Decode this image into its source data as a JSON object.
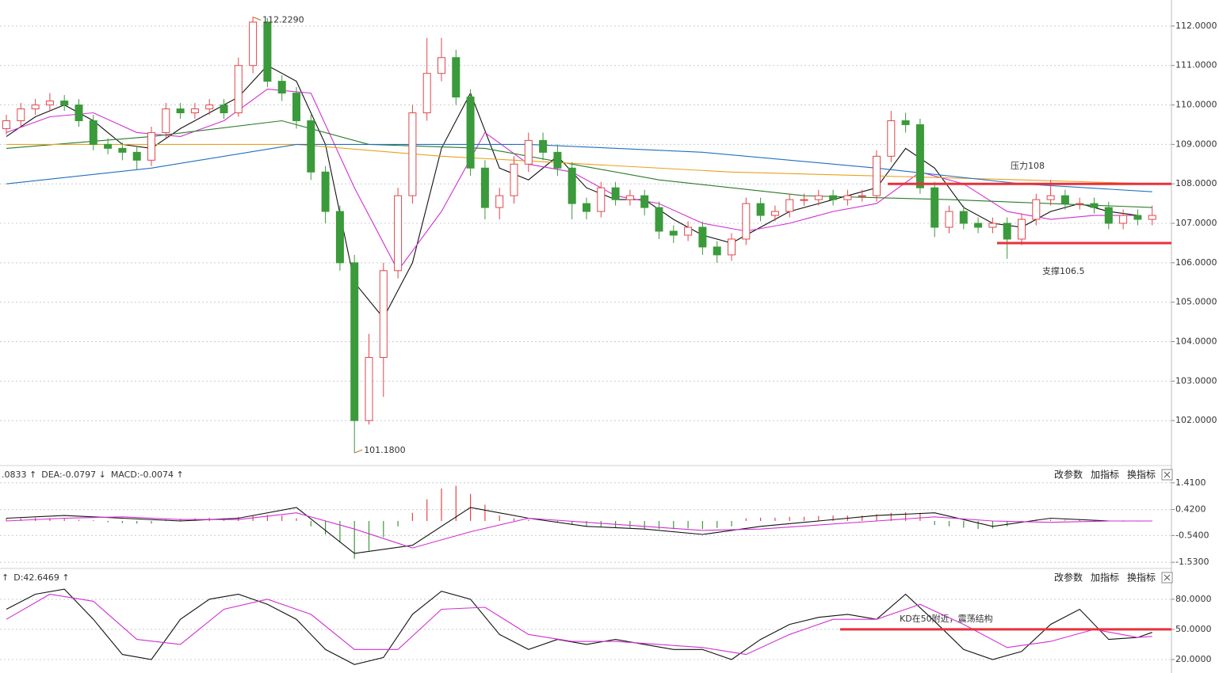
{
  "chart_data": [
    {
      "type": "candlestick",
      "open": [
        109.4,
        109.6,
        109.9,
        110.0,
        110.1,
        110.0,
        109.6,
        109.0,
        108.9,
        108.8,
        108.6,
        109.3,
        109.9,
        109.8,
        109.9,
        110.0,
        109.8,
        111.0,
        112.1,
        110.6,
        110.3,
        109.6,
        108.3,
        107.3,
        106.0,
        102.0,
        103.6,
        105.8,
        107.7,
        109.8,
        110.8,
        111.2,
        110.2,
        108.4,
        107.4,
        107.7,
        108.5,
        109.1,
        108.8,
        108.4,
        107.5,
        107.3,
        107.9,
        107.6,
        107.7,
        107.4,
        106.8,
        106.7,
        106.9,
        106.4,
        106.2,
        106.6,
        107.5,
        107.2,
        107.3,
        107.6,
        107.6,
        107.7,
        107.6,
        107.7,
        107.7,
        108.7,
        109.6,
        109.5,
        107.9,
        106.9,
        107.3,
        107.0,
        106.9,
        107.0,
        106.6,
        107.1,
        107.6,
        107.7,
        107.5,
        107.5,
        107.4,
        107.0,
        107.2,
        107.1
      ],
      "high": [
        109.75,
        110.05,
        110.15,
        110.3,
        110.25,
        110.15,
        109.75,
        109.15,
        109.05,
        108.95,
        109.45,
        110.05,
        110.05,
        110.05,
        110.15,
        110.15,
        111.2,
        112.229,
        112.2,
        110.75,
        110.45,
        109.75,
        108.45,
        107.45,
        106.2,
        104.2,
        106.0,
        107.9,
        110.0,
        111.7,
        111.7,
        111.4,
        110.4,
        108.6,
        107.9,
        108.7,
        109.3,
        109.3,
        109.0,
        108.55,
        107.65,
        108.05,
        108.05,
        107.85,
        107.85,
        107.55,
        106.95,
        107.05,
        107.05,
        106.55,
        106.75,
        107.65,
        107.65,
        107.45,
        107.75,
        107.75,
        107.85,
        107.85,
        107.85,
        107.85,
        108.85,
        109.85,
        109.8,
        109.65,
        108.05,
        107.45,
        107.45,
        107.15,
        107.15,
        107.15,
        107.25,
        107.75,
        108.1,
        107.85,
        107.65,
        107.65,
        107.55,
        107.35,
        107.35,
        107.45
      ],
      "low": [
        109.25,
        109.45,
        109.75,
        109.85,
        109.85,
        109.45,
        108.85,
        108.75,
        108.6,
        108.35,
        108.45,
        109.15,
        109.65,
        109.65,
        109.75,
        109.65,
        109.7,
        110.8,
        110.45,
        110.1,
        109.4,
        108.1,
        107.0,
        105.8,
        101.18,
        101.9,
        102.6,
        105.6,
        107.5,
        109.6,
        110.6,
        110.0,
        108.2,
        107.1,
        107.1,
        107.5,
        108.3,
        108.6,
        108.2,
        107.1,
        107.1,
        107.15,
        107.45,
        107.45,
        107.2,
        106.6,
        106.5,
        106.55,
        106.2,
        106.0,
        106.05,
        106.45,
        107.05,
        107.05,
        107.15,
        107.45,
        107.45,
        107.45,
        107.45,
        107.55,
        107.55,
        108.55,
        109.3,
        107.75,
        106.65,
        106.75,
        106.85,
        106.75,
        106.75,
        106.1,
        106.45,
        106.95,
        107.45,
        107.35,
        107.35,
        107.25,
        106.85,
        106.85,
        106.95,
        106.95
      ],
      "close": [
        109.6,
        109.9,
        110.0,
        110.1,
        110.0,
        109.6,
        109.0,
        108.9,
        108.8,
        108.6,
        109.3,
        109.9,
        109.8,
        109.9,
        110.0,
        109.8,
        111.0,
        112.1,
        110.6,
        110.3,
        109.6,
        108.3,
        107.3,
        106.0,
        102.0,
        103.6,
        105.8,
        107.7,
        109.8,
        110.8,
        111.2,
        110.2,
        108.4,
        107.4,
        107.7,
        108.5,
        109.1,
        108.8,
        108.4,
        107.5,
        107.3,
        107.9,
        107.6,
        107.7,
        107.4,
        106.8,
        106.7,
        106.9,
        106.4,
        106.2,
        106.6,
        107.5,
        107.2,
        107.3,
        107.6,
        107.6,
        107.7,
        107.6,
        107.7,
        107.7,
        108.7,
        109.6,
        109.5,
        107.9,
        106.9,
        107.3,
        107.0,
        106.9,
        107.0,
        106.6,
        107.1,
        107.6,
        107.7,
        107.5,
        107.5,
        107.4,
        107.0,
        107.2,
        107.1,
        107.2
      ],
      "up_color": "#e0474c",
      "down_color": "#3b9a3b",
      "ylim": [
        100.88,
        112.66
      ],
      "yticks": [
        {
          "value": 102,
          "label": "102.0000"
        },
        {
          "value": 103,
          "label": "103.0000"
        },
        {
          "value": 104,
          "label": "104.0000"
        },
        {
          "value": 105,
          "label": "105.0000"
        },
        {
          "value": 106,
          "label": "106.0000"
        },
        {
          "value": 107,
          "label": "107.0000"
        },
        {
          "value": 108,
          "label": "108.0000"
        },
        {
          "value": 109,
          "label": "109.0000"
        },
        {
          "value": 110,
          "label": "110.0000"
        },
        {
          "value": 111,
          "label": "111.0000"
        },
        {
          "value": 112,
          "label": "112.0000"
        }
      ],
      "grid": true,
      "lines": [
        {
          "color": "#111111",
          "x": [
            0,
            2,
            4,
            6,
            8,
            10,
            12,
            14,
            16,
            18,
            20,
            22,
            24,
            26,
            28,
            30,
            32,
            34,
            36,
            38,
            40,
            42,
            44,
            46,
            48,
            50,
            52,
            54,
            56,
            58,
            60,
            62,
            64,
            66,
            68,
            70,
            72,
            74,
            76,
            78
          ],
          "values": [
            109.2,
            109.7,
            110.0,
            109.6,
            109.0,
            108.9,
            109.4,
            109.8,
            110.2,
            111.0,
            110.6,
            109.0,
            105.5,
            104.6,
            106.0,
            108.9,
            110.3,
            108.4,
            108.1,
            108.7,
            107.9,
            107.6,
            107.6,
            107.1,
            106.7,
            106.5,
            106.9,
            107.3,
            107.5,
            107.7,
            107.9,
            108.9,
            108.4,
            107.4,
            107.0,
            106.9,
            107.3,
            107.5,
            107.3,
            107.2
          ]
        },
        {
          "color": "#d22fd2",
          "x": [
            0,
            3,
            6,
            9,
            12,
            15,
            18,
            21,
            24,
            27,
            30,
            33,
            36,
            39,
            42,
            45,
            48,
            51,
            54,
            57,
            60,
            63,
            66,
            69,
            72,
            75,
            78
          ],
          "values": [
            109.3,
            109.7,
            109.8,
            109.3,
            109.2,
            109.6,
            110.4,
            110.3,
            107.9,
            105.8,
            107.3,
            109.3,
            108.5,
            108.3,
            107.7,
            107.5,
            107.0,
            106.8,
            107.0,
            107.3,
            107.5,
            108.3,
            108.0,
            107.3,
            107.1,
            107.2,
            107.2
          ]
        },
        {
          "color": "#2a7a2a",
          "x": [
            0,
            10,
            19,
            25,
            33,
            45,
            55,
            65,
            79
          ],
          "values": [
            108.9,
            109.2,
            109.6,
            109.0,
            108.9,
            108.1,
            107.7,
            107.6,
            107.4
          ]
        },
        {
          "color": "#e8a020",
          "x": [
            0,
            10,
            20,
            30,
            40,
            50,
            60,
            70,
            79
          ],
          "values": [
            109.0,
            109.0,
            109.0,
            108.7,
            108.5,
            108.3,
            108.2,
            108.1,
            108.0
          ]
        },
        {
          "color": "#1f6fc0",
          "x": [
            0,
            10,
            20,
            28,
            36,
            48,
            60,
            70,
            79
          ],
          "values": [
            108.0,
            108.4,
            109.0,
            109.0,
            109.0,
            108.8,
            108.4,
            108.0,
            107.8
          ]
        }
      ],
      "extreme_labels": [
        {
          "index": 17,
          "value": 112.229,
          "label": "112.2290"
        },
        {
          "index": 24,
          "value": 101.18,
          "label": "101.1800"
        }
      ],
      "levels": [
        {
          "value": 108,
          "label": "压力108",
          "color": "#e8313a"
        },
        {
          "value": 106.5,
          "label": "支撑106.5",
          "color": "#e8313a"
        }
      ]
    },
    {
      "type": "macd",
      "header": [
        ".0833 ↑",
        "DEA:-0.0797 ↓",
        "MACD:-0.0074 ↑"
      ],
      "buttons": [
        "改参数",
        "加指标",
        "换指标"
      ],
      "histogram": [
        0.1,
        0.1,
        0.12,
        0.1,
        0.08,
        0.05,
        0.03,
        -0.05,
        -0.08,
        -0.1,
        -0.1,
        0.05,
        0.08,
        0.1,
        0.12,
        0.1,
        0.15,
        0.2,
        0.22,
        0.2,
        0.1,
        -0.2,
        -0.5,
        -0.8,
        -1.4,
        -1.1,
        -0.6,
        -0.2,
        0.3,
        0.8,
        1.2,
        1.3,
        1.0,
        0.6,
        0.2,
        0.1,
        0.05,
        0.0,
        -0.05,
        -0.15,
        -0.2,
        -0.22,
        -0.25,
        -0.25,
        -0.28,
        -0.3,
        -0.3,
        -0.28,
        -0.3,
        -0.26,
        -0.2,
        0.1,
        0.12,
        0.12,
        0.15,
        0.15,
        0.18,
        0.2,
        0.2,
        0.2,
        0.25,
        0.3,
        0.32,
        0.3,
        -0.15,
        -0.2,
        -0.25,
        -0.3,
        -0.28,
        -0.2,
        -0.05,
        0.05,
        0.05,
        0.04,
        0.05,
        0.03,
        0.02,
        -0.03,
        -0.02,
        -0.01
      ],
      "up_color": "#e0474c",
      "down_color": "#3b9a3b",
      "lines": [
        {
          "color": "#111111",
          "x": [
            0,
            4,
            8,
            12,
            16,
            20,
            24,
            28,
            32,
            36,
            40,
            44,
            48,
            52,
            56,
            60,
            64,
            68,
            72,
            76,
            79
          ],
          "values": [
            0.1,
            0.2,
            0.1,
            0.0,
            0.1,
            0.5,
            -1.2,
            -0.9,
            0.5,
            0.1,
            -0.2,
            -0.3,
            -0.5,
            -0.2,
            0.0,
            0.2,
            0.3,
            -0.2,
            0.1,
            0.0,
            0.0
          ]
        },
        {
          "color": "#d22fd2",
          "x": [
            0,
            4,
            8,
            12,
            16,
            20,
            24,
            28,
            32,
            36,
            40,
            44,
            48,
            52,
            56,
            60,
            64,
            68,
            72,
            76,
            79
          ],
          "values": [
            0.0,
            0.1,
            0.15,
            0.05,
            0.05,
            0.3,
            -0.3,
            -1.0,
            -0.4,
            0.1,
            -0.05,
            -0.2,
            -0.35,
            -0.3,
            -0.15,
            0.0,
            0.15,
            0.0,
            -0.05,
            0.0,
            0.0
          ]
        }
      ],
      "ylim": [
        -1.7,
        1.99
      ],
      "yticks": [
        {
          "value": 1.41,
          "label": "1.4100"
        },
        {
          "value": 0.42,
          "label": "0.4200"
        },
        {
          "value": -0.54,
          "label": "-0.5400"
        },
        {
          "value": -1.53,
          "label": "-1.5300"
        }
      ],
      "grid": true
    },
    {
      "type": "kd",
      "header": [
        "↑",
        "D:42.6469 ↑"
      ],
      "buttons": [
        "改参数",
        "加指标",
        "换指标"
      ],
      "lines": [
        {
          "color": "#111111",
          "x": [
            0,
            2,
            4,
            6,
            8,
            10,
            12,
            14,
            16,
            18,
            20,
            22,
            24,
            26,
            28,
            30,
            32,
            34,
            36,
            38,
            40,
            42,
            44,
            46,
            48,
            50,
            52,
            54,
            56,
            58,
            60,
            62,
            64,
            66,
            68,
            70,
            72,
            74,
            76,
            78,
            79
          ],
          "values": [
            70,
            85,
            90,
            60,
            25,
            20,
            60,
            80,
            85,
            75,
            60,
            30,
            15,
            22,
            65,
            88,
            80,
            45,
            30,
            40,
            35,
            40,
            35,
            30,
            30,
            20,
            40,
            55,
            62,
            65,
            60,
            85,
            58,
            30,
            20,
            28,
            55,
            70,
            40,
            42,
            47
          ]
        },
        {
          "color": "#d22fd2",
          "x": [
            0,
            3,
            6,
            9,
            12,
            15,
            18,
            21,
            24,
            27,
            30,
            33,
            36,
            39,
            42,
            45,
            48,
            51,
            54,
            57,
            60,
            63,
            66,
            69,
            72,
            75,
            78,
            79
          ],
          "values": [
            60,
            85,
            78,
            40,
            35,
            70,
            80,
            65,
            30,
            30,
            70,
            72,
            45,
            38,
            38,
            35,
            32,
            25,
            45,
            60,
            60,
            75,
            55,
            32,
            38,
            50,
            42,
            43
          ]
        }
      ],
      "ylim": [
        6.6,
        109
      ],
      "yticks": [
        {
          "value": 20,
          "label": "20.0000"
        },
        {
          "value": 50,
          "label": "50.0000"
        },
        {
          "value": 80,
          "label": "80.0000"
        }
      ],
      "grid": true,
      "levels": [
        {
          "value": 50,
          "label": "KD在50附近，震荡结构",
          "color": "#e8313a"
        }
      ]
    }
  ]
}
